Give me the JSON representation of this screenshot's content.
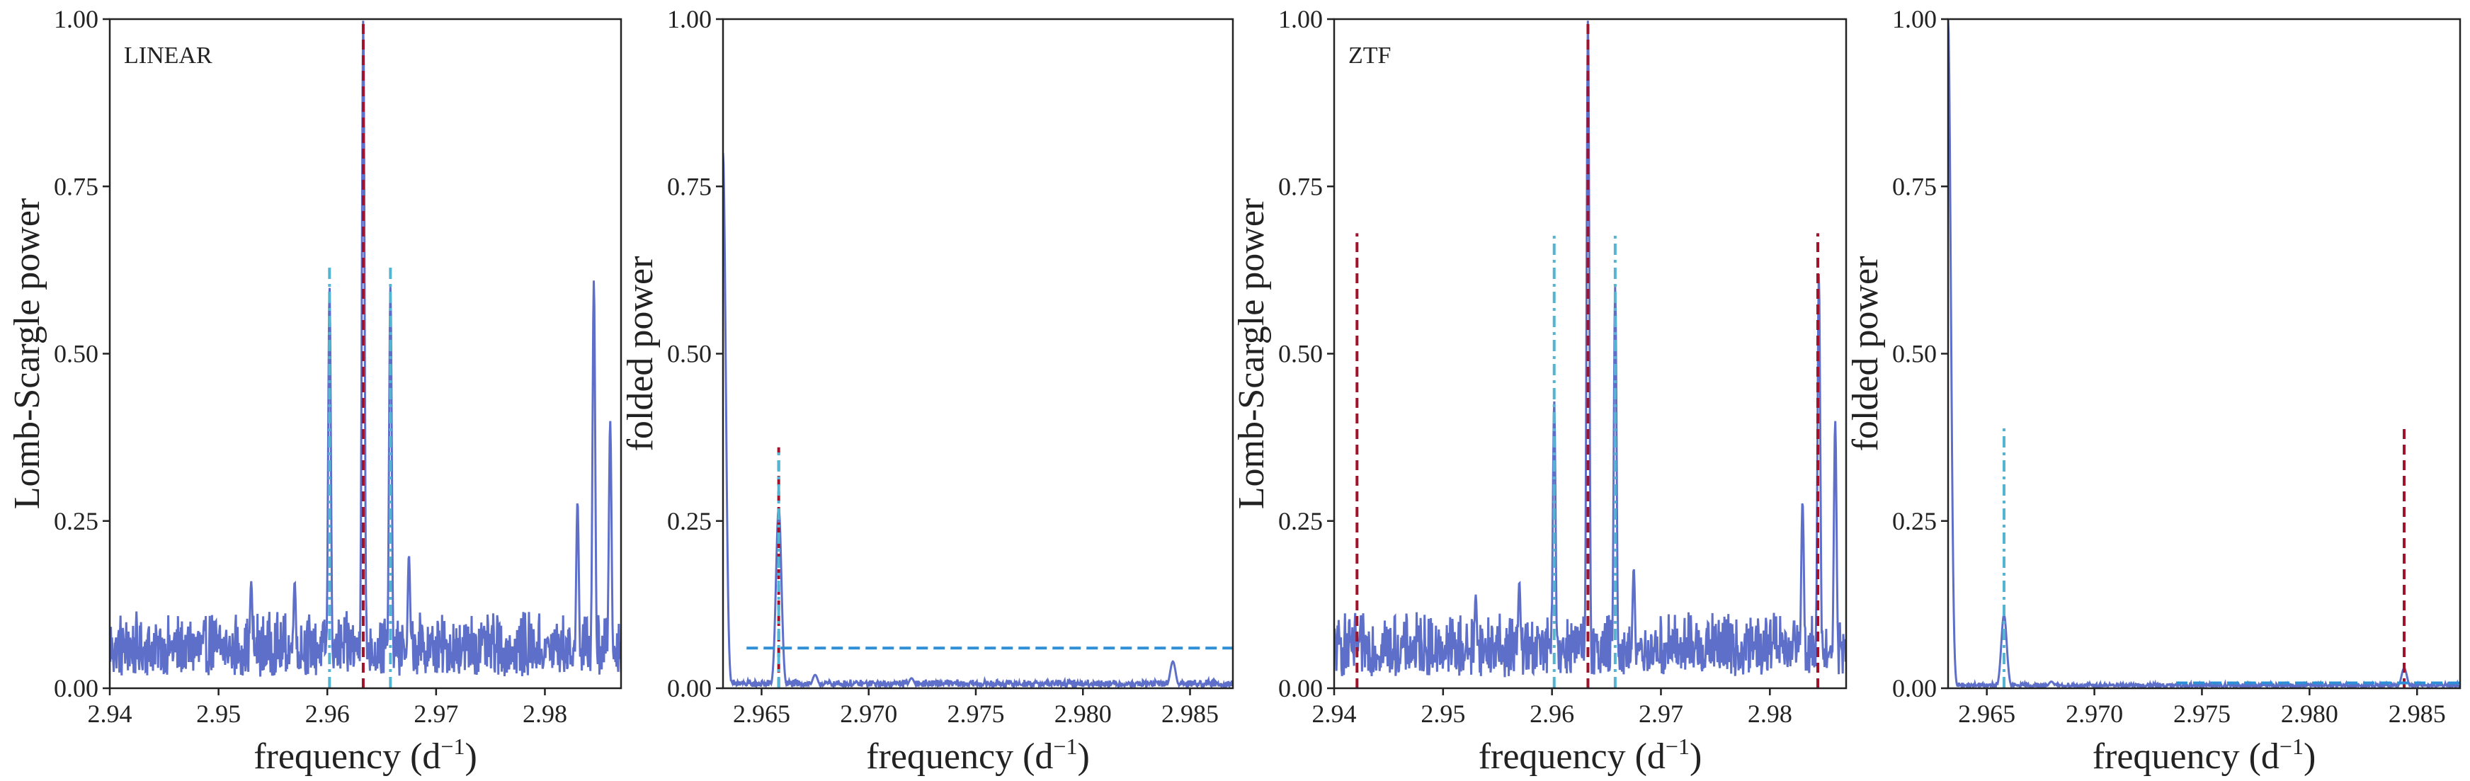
{
  "colors": {
    "periodogram": "#5e6fc9",
    "red_dashed": "#a2122a",
    "cyan_dashdot": "#56b4d3",
    "blue_dashed": "#2f8fd6",
    "axis": "#222222"
  },
  "chart_data": [
    {
      "type": "line",
      "panel_label": "LINEAR",
      "xlabel": "frequency (d",
      "xlabel_sup": "−1",
      "xlabel_end": ")",
      "ylabel": "Lomb-Scargle power",
      "xlim": [
        2.94,
        2.987
      ],
      "ylim": [
        0,
        1
      ],
      "xticks": [
        2.94,
        2.95,
        2.96,
        2.97,
        2.98
      ],
      "xtick_labels": [
        "2.94",
        "2.95",
        "2.96",
        "2.97",
        "2.98"
      ],
      "yticks": [
        0,
        0.25,
        0.5,
        0.75,
        1
      ],
      "ytick_labels": [
        "0.00",
        "0.25",
        "0.50",
        "0.75",
        "1.00"
      ],
      "series_peaks": [
        {
          "x": 2.9633,
          "y": 1.0
        },
        {
          "x": 2.9602,
          "y": 0.6
        },
        {
          "x": 2.9658,
          "y": 0.6
        },
        {
          "x": 2.9845,
          "y": 0.61
        },
        {
          "x": 2.986,
          "y": 0.4
        },
        {
          "x": 2.983,
          "y": 0.28
        },
        {
          "x": 2.9675,
          "y": 0.2
        },
        {
          "x": 2.957,
          "y": 0.16
        },
        {
          "x": 2.953,
          "y": 0.16
        }
      ],
      "noise_level": 0.07,
      "vlines": [
        {
          "x": 2.9633,
          "y0": 0,
          "y1": 1.0,
          "style": "red_dashed"
        },
        {
          "x": 2.9602,
          "y0": 0,
          "y1": 0.63,
          "style": "cyan_dashdot"
        },
        {
          "x": 2.9658,
          "y0": 0,
          "y1": 0.63,
          "style": "cyan_dashdot"
        }
      ],
      "hlines": []
    },
    {
      "type": "line",
      "panel_label": "",
      "xlabel": "frequency (d",
      "xlabel_sup": "−1",
      "xlabel_end": ")",
      "ylabel": "folded power",
      "xlim": [
        2.9632,
        2.987
      ],
      "ylim": [
        0,
        1
      ],
      "xticks": [
        2.965,
        2.97,
        2.975,
        2.98,
        2.985
      ],
      "xtick_labels": [
        "2.965",
        "2.970",
        "2.975",
        "2.980",
        "2.985"
      ],
      "yticks": [
        0,
        0.25,
        0.5,
        0.75,
        1
      ],
      "ytick_labels": [
        "0.00",
        "0.25",
        "0.50",
        "0.75",
        "1.00"
      ],
      "series_peaks": [
        {
          "x": 2.9632,
          "y": 0.8
        },
        {
          "x": 2.9658,
          "y": 0.27
        },
        {
          "x": 2.9842,
          "y": 0.04
        },
        {
          "x": 2.9675,
          "y": 0.02
        },
        {
          "x": 2.972,
          "y": 0.015
        }
      ],
      "noise_level": 0.008,
      "vlines": [
        {
          "x": 2.9658,
          "y0": 0,
          "y1": 0.36,
          "style": "red_dashed"
        },
        {
          "x": 2.9658,
          "y0": 0,
          "y1": 0.36,
          "style": "cyan_dashdot"
        }
      ],
      "hlines": [
        {
          "y": 0.06,
          "x0": 2.9643,
          "x1": 2.987,
          "style": "blue_dashed"
        }
      ]
    },
    {
      "type": "line",
      "panel_label": "ZTF",
      "xlabel": "frequency (d",
      "xlabel_sup": "−1",
      "xlabel_end": ")",
      "ylabel": "Lomb-Scargle power",
      "xlim": [
        2.94,
        2.987
      ],
      "ylim": [
        0,
        1
      ],
      "xticks": [
        2.94,
        2.95,
        2.96,
        2.97,
        2.98
      ],
      "xtick_labels": [
        "2.94",
        "2.95",
        "2.96",
        "2.97",
        "2.98"
      ],
      "yticks": [
        0,
        0.25,
        0.5,
        0.75,
        1
      ],
      "ytick_labels": [
        "0.00",
        "0.25",
        "0.50",
        "0.75",
        "1.00"
      ],
      "series_peaks": [
        {
          "x": 2.9633,
          "y": 1.0
        },
        {
          "x": 2.9658,
          "y": 0.6
        },
        {
          "x": 2.9602,
          "y": 0.43
        },
        {
          "x": 2.9845,
          "y": 0.62
        },
        {
          "x": 2.986,
          "y": 0.4
        },
        {
          "x": 2.983,
          "y": 0.28
        },
        {
          "x": 2.9675,
          "y": 0.18
        },
        {
          "x": 2.957,
          "y": 0.16
        },
        {
          "x": 2.953,
          "y": 0.14
        }
      ],
      "noise_level": 0.07,
      "vlines": [
        {
          "x": 2.9633,
          "y0": 0,
          "y1": 1.0,
          "style": "red_dashed"
        },
        {
          "x": 2.9421,
          "y0": 0,
          "y1": 0.68,
          "style": "red_dashed"
        },
        {
          "x": 2.9844,
          "y0": 0,
          "y1": 0.68,
          "style": "red_dashed"
        },
        {
          "x": 2.9602,
          "y0": 0,
          "y1": 0.68,
          "style": "cyan_dashdot"
        },
        {
          "x": 2.9658,
          "y0": 0,
          "y1": 0.68,
          "style": "cyan_dashdot"
        }
      ],
      "hlines": []
    },
    {
      "type": "line",
      "panel_label": "",
      "xlabel": "frequency (d",
      "xlabel_sup": "−1",
      "xlabel_end": ")",
      "ylabel": "folded power",
      "xlim": [
        2.9632,
        2.987
      ],
      "ylim": [
        0,
        1
      ],
      "xticks": [
        2.965,
        2.97,
        2.975,
        2.98,
        2.985
      ],
      "xtick_labels": [
        "2.965",
        "2.970",
        "2.975",
        "2.980",
        "2.985"
      ],
      "yticks": [
        0,
        0.25,
        0.5,
        0.75,
        1
      ],
      "ytick_labels": [
        "0.00",
        "0.25",
        "0.50",
        "0.75",
        "1.00"
      ],
      "series_peaks": [
        {
          "x": 2.9632,
          "y": 1.0
        },
        {
          "x": 2.9658,
          "y": 0.11
        },
        {
          "x": 2.9844,
          "y": 0.03
        },
        {
          "x": 2.968,
          "y": 0.01
        }
      ],
      "noise_level": 0.005,
      "vlines": [
        {
          "x": 2.9658,
          "y0": 0,
          "y1": 0.39,
          "style": "cyan_dashdot"
        },
        {
          "x": 2.9844,
          "y0": 0,
          "y1": 0.39,
          "style": "red_dashed"
        }
      ],
      "hlines": [
        {
          "y": 0.008,
          "x0": 2.9738,
          "x1": 2.987,
          "style": "blue_dashed"
        }
      ]
    }
  ]
}
